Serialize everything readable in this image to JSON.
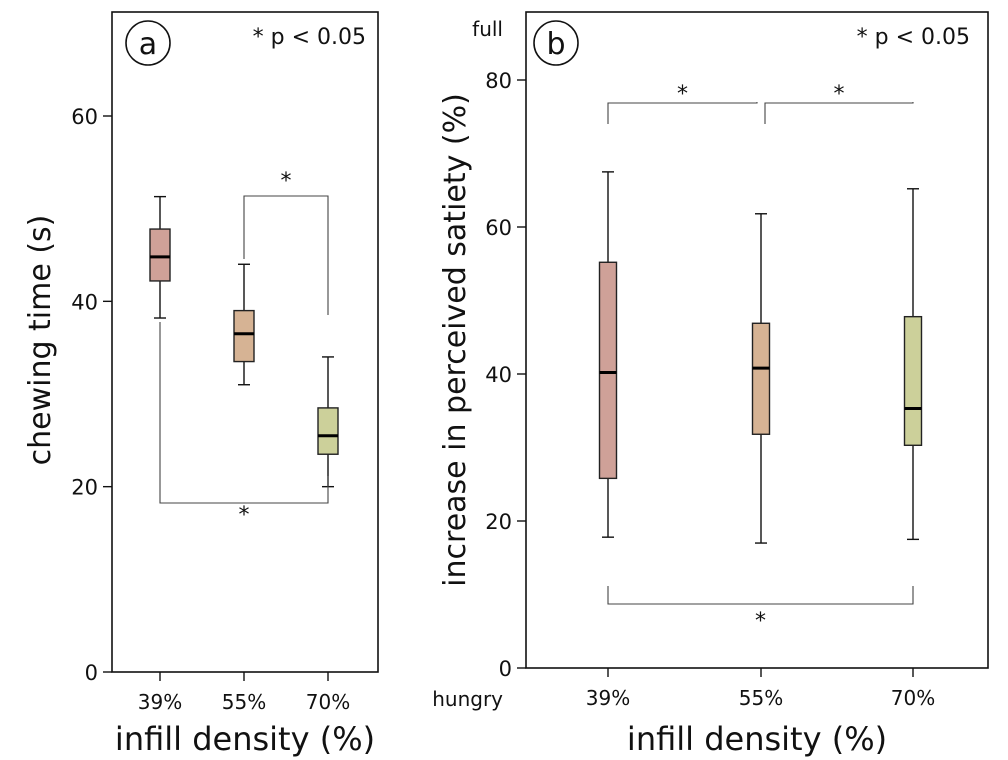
{
  "chart_data": [
    {
      "type": "box",
      "panel_label": "a",
      "significance_note": "* p < 0.05",
      "xlabel": "infill density (%)",
      "ylabel": "chewing time (s)",
      "ylim": [
        0,
        70
      ],
      "yticks": [
        0,
        20,
        40,
        60
      ],
      "categories": [
        "39%",
        "55%",
        "70%"
      ],
      "colors": [
        "#cfa198",
        "#d6b394",
        "#ccd09a"
      ],
      "boxes": [
        {
          "category": "39%",
          "min": 38.2,
          "q1": 42.2,
          "median": 44.8,
          "q3": 47.8,
          "max": 51.3
        },
        {
          "category": "55%",
          "min": 31.0,
          "q1": 33.5,
          "median": 36.5,
          "q3": 39.0,
          "max": 44.0
        },
        {
          "category": "70%",
          "min": 20.0,
          "q1": 23.5,
          "median": 25.5,
          "q3": 28.5,
          "max": 34.0
        }
      ],
      "significance": [
        {
          "from": "55%",
          "to": "70%",
          "label": "*",
          "position": "above"
        },
        {
          "from": "39%",
          "to": "70%",
          "label": "*",
          "position": "below"
        }
      ],
      "grid": false,
      "legend": "none"
    },
    {
      "type": "box",
      "panel_label": "b",
      "significance_note": "* p < 0.05",
      "xlabel": "infill density (%)",
      "ylabel": "increase in perceived satiety (%)",
      "ylim": [
        0,
        88
      ],
      "yticks": [
        0,
        20,
        40,
        60,
        80
      ],
      "y_top_annotation": "full",
      "y_bottom_annotation": "hungry",
      "categories": [
        "39%",
        "55%",
        "70%"
      ],
      "colors": [
        "#cfa198",
        "#d6b394",
        "#ccd09a"
      ],
      "boxes": [
        {
          "category": "39%",
          "min": 17.8,
          "q1": 25.8,
          "median": 40.2,
          "q3": 55.2,
          "max": 67.5
        },
        {
          "category": "55%",
          "min": 17.0,
          "q1": 31.8,
          "median": 40.8,
          "q3": 46.9,
          "max": 61.8
        },
        {
          "category": "70%",
          "min": 17.5,
          "q1": 30.3,
          "median": 35.3,
          "q3": 47.8,
          "max": 65.2
        }
      ],
      "significance": [
        {
          "from": "39%",
          "to": "55%",
          "label": "*",
          "position": "above"
        },
        {
          "from": "55%",
          "to": "70%",
          "label": "*",
          "position": "above"
        },
        {
          "from": "39%",
          "to": "70%",
          "label": "*",
          "position": "below"
        }
      ],
      "grid": false,
      "legend": "none"
    }
  ]
}
